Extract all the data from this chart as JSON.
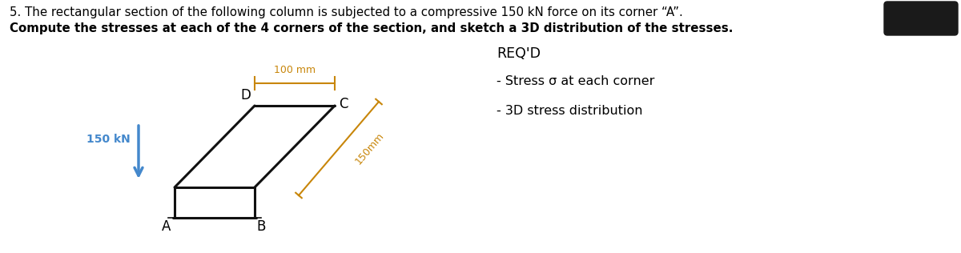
{
  "title_line1": "5. The rectangular section of the following column is subjected to a compressive 150 kN force on its corner “A”.",
  "title_line2": "Compute the stresses at each of the 4 corners of the section, and sketch a 3D distribution of the stresses.",
  "background_color": "#ffffff",
  "text_color": "#000000",
  "dim_color": "#c8860a",
  "force_color": "#4488cc",
  "shape_color": "#111111",
  "blob_color": "#1a1a1a",
  "req_text": "REQ'D",
  "req_line1": "- Stress σ at each corner",
  "req_line2": "- 3D stress distribution",
  "label_150kN": "150 kN",
  "label_100mm": "100 mm",
  "label_150mm": "150mm",
  "corner_A": "A",
  "corner_B": "B",
  "corner_C": "C",
  "corner_D": "D",
  "shape_lw": 2.2
}
